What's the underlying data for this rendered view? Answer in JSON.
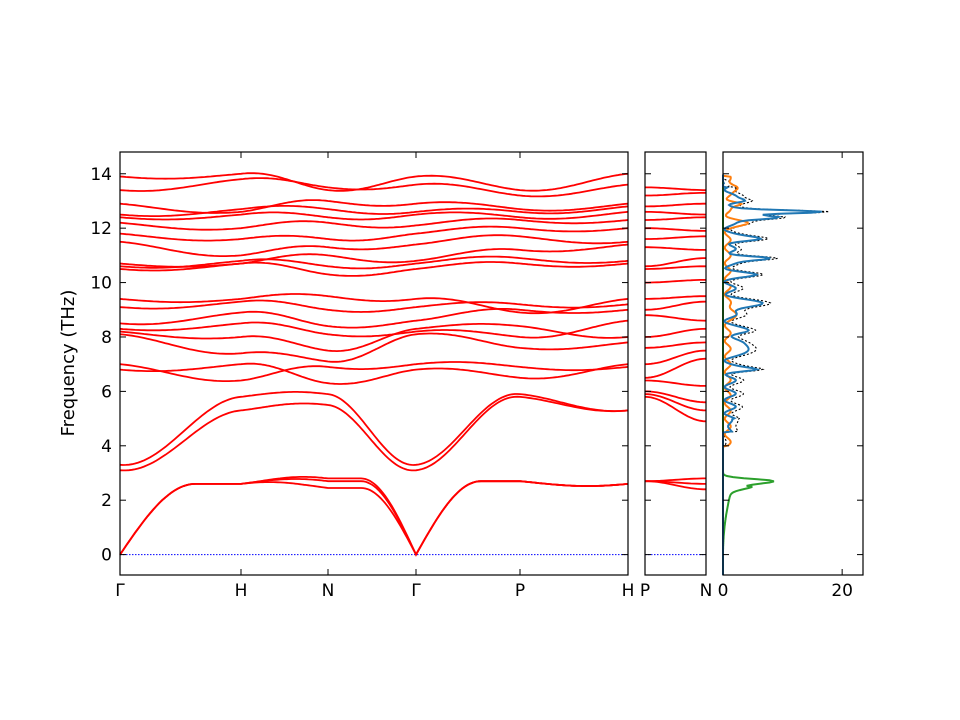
{
  "chart_data": [
    {
      "type": "line",
      "panel": "band-structure-main",
      "ylabel": "Frequency (THz)",
      "ylim": [
        -0.75,
        14.8
      ],
      "yticks": [
        0,
        2,
        4,
        6,
        8,
        10,
        12,
        14
      ],
      "xticks": [
        "Γ",
        "H",
        "N",
        "Γ",
        "P",
        "H"
      ],
      "series_color": "#ff0000",
      "zero_line_color": "#0000ff",
      "description_of_bands": "phonon dispersion: 3 acoustic branches from 0 at Γ rising to ~2.6-2.8 THz, optical bands from ~3 to ~14 THz"
    },
    {
      "type": "line",
      "panel": "band-structure-segment",
      "xticks": [
        "P",
        "N"
      ],
      "ylim": [
        -0.75,
        14.8
      ],
      "series_color": "#ff0000"
    },
    {
      "type": "line",
      "panel": "projected-dos",
      "xlim": [
        0,
        23.5
      ],
      "xticks": [
        0,
        20
      ],
      "ylim": [
        -0.75,
        14.8
      ],
      "series": [
        {
          "color": "#1f77b4"
        },
        {
          "color": "#ff7f0e"
        },
        {
          "color": "#2ca02c"
        },
        {
          "color": "#000000",
          "style": "dotted"
        }
      ]
    }
  ]
}
